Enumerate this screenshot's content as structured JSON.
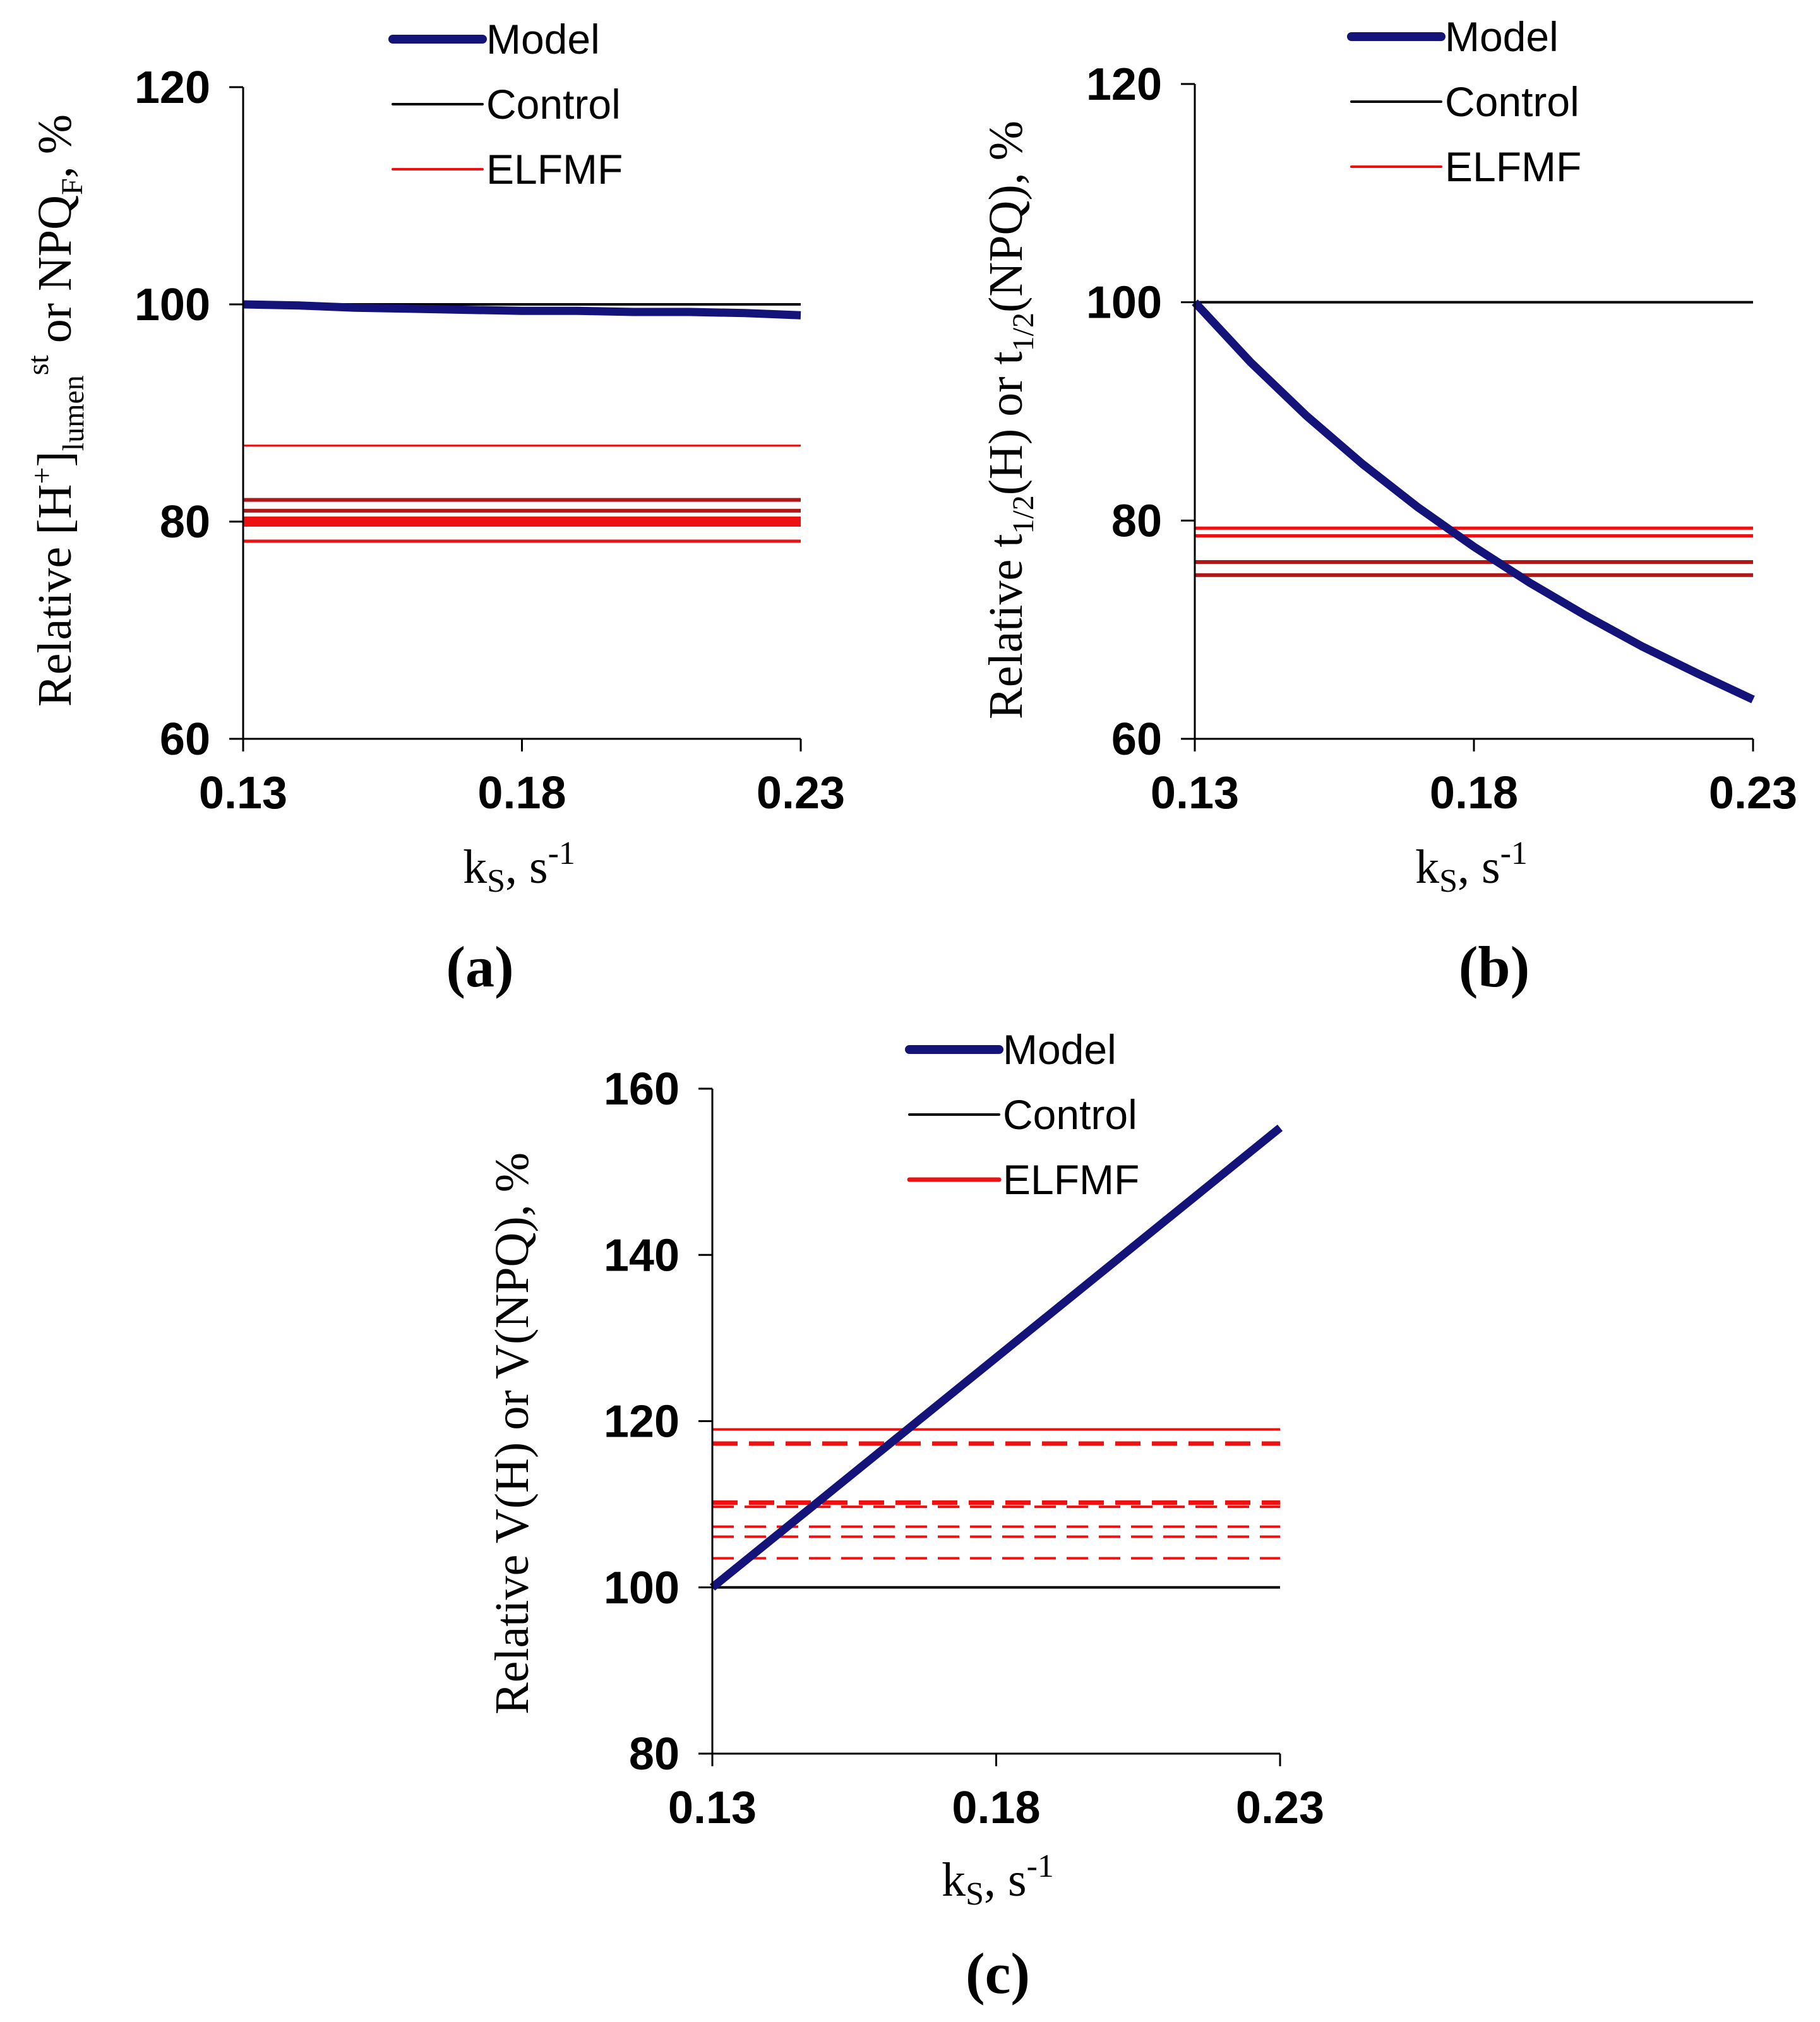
{
  "colors": {
    "model": "#14137a",
    "control": "#000000",
    "elfmf": "#ee1111",
    "elfmf_dark": "#b01818",
    "axis": "#000000"
  },
  "chart_data": [
    {
      "id": "a",
      "type": "line",
      "panel_label": "(a)",
      "ylabel": {
        "prefix": "Relative [H",
        "sup1": "+",
        "mid": "]",
        "sub": "lumen",
        "sup2": "st",
        "suffix1": " or NPQ",
        "sub2": "F",
        "suffix2": ", %"
      },
      "xlabel": {
        "base": "k",
        "sub": "S",
        "mid": ", s",
        "sup": "-1"
      },
      "xlim": [
        0.13,
        0.23
      ],
      "ylim": [
        60,
        120
      ],
      "xticks": [
        "0.13",
        "0.18",
        "0.23"
      ],
      "xtick_values": [
        0.13,
        0.18,
        0.23
      ],
      "yticks": [
        "60",
        "80",
        "100",
        "120"
      ],
      "ytick_values": [
        60,
        80,
        100,
        120
      ],
      "legend": [
        "Model",
        "Control",
        "ELFMF"
      ],
      "series": [
        {
          "name": "Model",
          "x": [
            0.13,
            0.14,
            0.15,
            0.16,
            0.17,
            0.18,
            0.19,
            0.2,
            0.21,
            0.22,
            0.23
          ],
          "y": [
            100,
            99.9,
            99.7,
            99.6,
            99.5,
            99.4,
            99.4,
            99.3,
            99.3,
            99.2,
            99.0
          ]
        },
        {
          "name": "Control",
          "value": 100
        },
        {
          "name": "ELFMF",
          "values": [
            87,
            82,
            81,
            80.2,
            79.8,
            78.2
          ],
          "styles": [
            "thin",
            "dark",
            "dark",
            "thick",
            "thick",
            "normal"
          ]
        }
      ]
    },
    {
      "id": "b",
      "type": "line",
      "panel_label": "(b)",
      "ylabel": {
        "prefix": "Relative t",
        "sub1": "1/2",
        "mid": "(H) or t",
        "sub2": "1/2",
        "suffix": "(NPQ), %"
      },
      "xlabel": {
        "base": "k",
        "sub": "S",
        "mid": ", s",
        "sup": "-1"
      },
      "xlim": [
        0.13,
        0.23
      ],
      "ylim": [
        60,
        120
      ],
      "xticks": [
        "0.13",
        "0.18",
        "0.23"
      ],
      "xtick_values": [
        0.13,
        0.18,
        0.23
      ],
      "yticks": [
        "60",
        "80",
        "100",
        "120"
      ],
      "ytick_values": [
        60,
        80,
        100,
        120
      ],
      "legend": [
        "Model",
        "Control",
        "ELFMF"
      ],
      "series": [
        {
          "name": "Model",
          "x": [
            0.13,
            0.14,
            0.15,
            0.16,
            0.17,
            0.18,
            0.19,
            0.2,
            0.21,
            0.22,
            0.23
          ],
          "y": [
            100,
            94.5,
            89.6,
            85.2,
            81.2,
            77.6,
            74.3,
            71.3,
            68.5,
            66.0,
            63.6
          ]
        },
        {
          "name": "Control",
          "value": 100
        },
        {
          "name": "ELFMF",
          "values": [
            79.3,
            78.6,
            76.2,
            75.0
          ],
          "styles": [
            "normal",
            "normal",
            "dark",
            "dark"
          ]
        }
      ]
    },
    {
      "id": "c",
      "type": "line",
      "panel_label": "(c)",
      "ylabel": {
        "text": "Relative V(H) or V(NPQ), %"
      },
      "xlabel": {
        "base": "k",
        "sub": "S",
        "mid": ", s",
        "sup": "-1"
      },
      "xlim": [
        0.13,
        0.23
      ],
      "ylim": [
        80,
        160
      ],
      "xticks": [
        "0.13",
        "0.18",
        "0.23"
      ],
      "xtick_values": [
        0.13,
        0.18,
        0.23
      ],
      "yticks": [
        "80",
        "100",
        "120",
        "140",
        "160"
      ],
      "ytick_values": [
        80,
        100,
        120,
        140,
        160
      ],
      "legend": [
        "Model",
        "Control",
        "ELFMF"
      ],
      "series": [
        {
          "name": "Model",
          "x": [
            0.13,
            0.23
          ],
          "y": [
            100,
            155.3
          ]
        },
        {
          "name": "Control",
          "value": 100
        },
        {
          "name": "ELFMF",
          "values": [
            119,
            117.3,
            110.2,
            109.7,
            107.3,
            106.1,
            103.5
          ],
          "styles": [
            "solid",
            "dashed-thick",
            "dashed-thick",
            "dashed",
            "dashed",
            "dashed",
            "dashed"
          ]
        }
      ]
    }
  ]
}
